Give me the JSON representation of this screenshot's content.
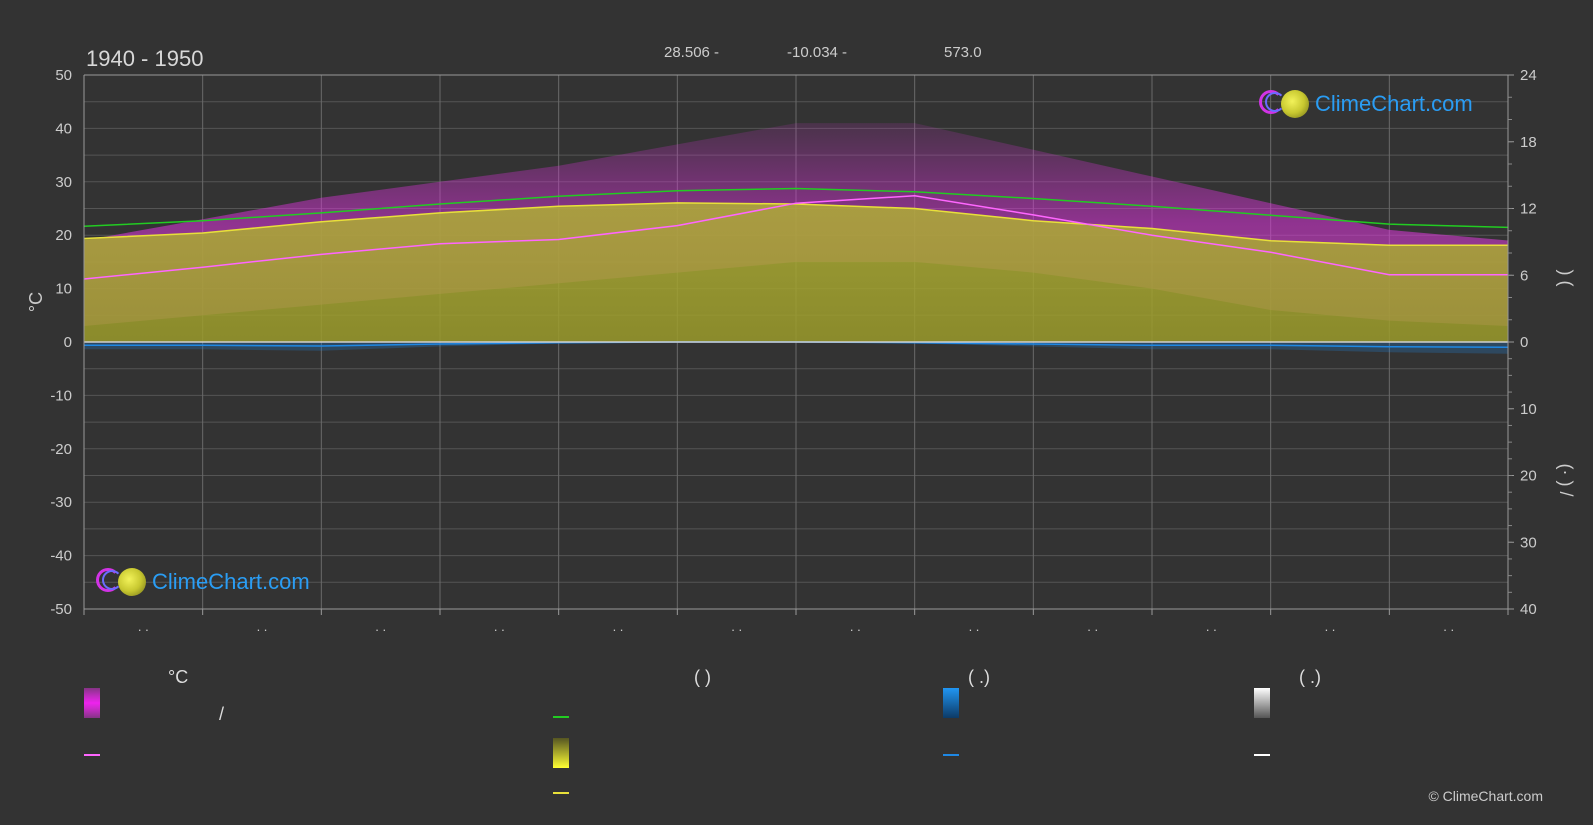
{
  "header": {
    "period": "1940 - 1950",
    "lat": "28.506 -",
    "lon": "-10.034 -",
    "elev": "573.0"
  },
  "brand": {
    "logo_text": "ClimeChart.com",
    "copyright": "© ClimeChart.com"
  },
  "legend": {
    "temp_head": "°C",
    "col2_head": "(          )",
    "col3_head": "(   .)",
    "col4_head": "(   .)",
    "slash": "/"
  },
  "colors": {
    "background": "#333333",
    "daylight": "#22cc22",
    "sunshine": "#e8e03a",
    "temp_mean": "#ff66ff",
    "temp_band": "#cc33cc",
    "sun_band": "#a8a830",
    "precip": "#1e88e5",
    "snow": "#ffffff"
  },
  "chart_data": {
    "type": "area",
    "ylabel_left": "°C",
    "ylabel_right_top": ")   (",
    "ylabel_right_bottom": "(·  )   /",
    "left_axis": {
      "min": -50,
      "max": 50,
      "ticks": [
        50,
        40,
        30,
        20,
        10,
        0,
        -10,
        -20,
        -30,
        -40,
        -50
      ]
    },
    "right_axis_top": {
      "min": 0,
      "max": 24,
      "ticks": [
        24,
        18,
        12,
        6,
        0
      ]
    },
    "right_axis_bottom": {
      "min": 0,
      "max": 40,
      "ticks": [
        10,
        20,
        30,
        40
      ]
    },
    "months": 12,
    "x_tick_labels": [
      ". .",
      ". .",
      ". .",
      ". .",
      ". .",
      ". .",
      ". .",
      ". .",
      ". .",
      ". .",
      ". .",
      ". ."
    ],
    "grid": true,
    "series": [
      {
        "name": "daylight_hours",
        "axis": "right_top",
        "x": [
          0,
          1,
          2,
          3,
          4,
          5,
          6,
          7,
          8,
          9,
          10,
          11,
          12
        ],
        "values": [
          10.4,
          10.9,
          11.6,
          12.4,
          13.1,
          13.6,
          13.8,
          13.5,
          12.9,
          12.2,
          11.4,
          10.6,
          10.3
        ]
      },
      {
        "name": "sunshine_hours",
        "axis": "right_top",
        "x": [
          0,
          1,
          2,
          3,
          4,
          5,
          6,
          7,
          8,
          9,
          10,
          11,
          12
        ],
        "values": [
          9.3,
          9.8,
          10.8,
          11.6,
          12.2,
          12.5,
          12.4,
          12.0,
          10.9,
          10.2,
          9.1,
          8.7,
          8.7
        ]
      },
      {
        "name": "mean_temp",
        "axis": "left",
        "x": [
          0,
          1,
          2,
          3,
          4,
          5,
          6,
          7,
          8,
          9,
          10,
          11,
          12
        ],
        "values": [
          11.8,
          14.0,
          16.4,
          18.4,
          19.2,
          21.8,
          26.0,
          27.4,
          23.8,
          20.0,
          16.8,
          12.6,
          12.6
        ]
      },
      {
        "name": "temp_max_band",
        "axis": "left",
        "x": [
          0,
          1,
          2,
          3,
          4,
          5,
          6,
          7,
          8,
          9,
          10,
          11,
          12
        ],
        "values": [
          19,
          23,
          27,
          30,
          33,
          37,
          41,
          41,
          36,
          31,
          26,
          21,
          19
        ]
      },
      {
        "name": "temp_min_band",
        "axis": "left",
        "x": [
          0,
          1,
          2,
          3,
          4,
          5,
          6,
          7,
          8,
          9,
          10,
          11,
          12
        ],
        "values": [
          3,
          5,
          7,
          9,
          11,
          13,
          15,
          15,
          13,
          10,
          6,
          4,
          3
        ]
      },
      {
        "name": "mean_precip",
        "axis": "right_bottom",
        "x": [
          0,
          1,
          2,
          3,
          4,
          5,
          6,
          7,
          8,
          9,
          10,
          11,
          12
        ],
        "values": [
          0.5,
          0.5,
          0.6,
          0.3,
          0.1,
          0.0,
          0.0,
          0.1,
          0.3,
          0.5,
          0.5,
          0.7,
          0.8
        ]
      }
    ]
  }
}
